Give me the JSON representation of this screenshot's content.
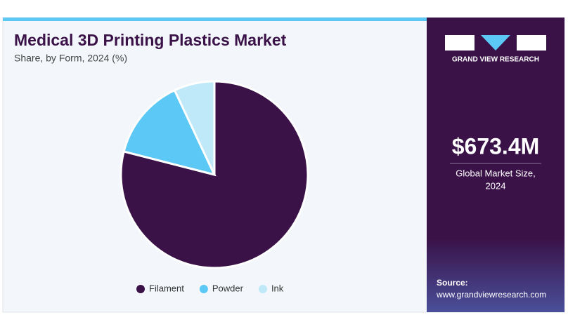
{
  "chart_data": {
    "type": "pie",
    "title": "Medical 3D Printing Plastics Market",
    "subtitle": "Share, by Form, 2024 (%)",
    "categories": [
      "Filament",
      "Powder",
      "Ink"
    ],
    "values": [
      79,
      14,
      7
    ],
    "colors": [
      "#3a1248",
      "#5bc8f5",
      "#bfe8f8"
    ],
    "legend": "bottom"
  },
  "sidebar": {
    "brand": "GRAND VIEW RESEARCH",
    "market_size": "$673.4M",
    "market_size_label": [
      "Global Market Size,",
      "2024"
    ],
    "source_label": "Source:",
    "source_url": "www.grandviewresearch.com"
  }
}
